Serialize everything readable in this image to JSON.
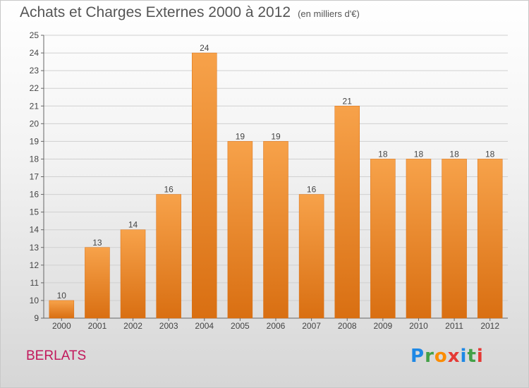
{
  "title": "Achats et Charges Externes 2000 à 2012",
  "title_unit": "(en milliers d'€)",
  "commune": "BERLATS",
  "logo": {
    "letters": [
      "P",
      "r",
      "o",
      "x",
      "i",
      "t",
      "i"
    ],
    "colors": [
      "#1e88e5",
      "#43a047",
      "#fb8c00",
      "#e53935",
      "#1e88e5",
      "#43a047",
      "#e53935"
    ]
  },
  "colors": {
    "bar": "#f08a2c",
    "bar_light": "#f7a24a",
    "bar_dark": "#d96f12",
    "accent_commune": "#c2185b"
  },
  "chart_data": {
    "type": "bar",
    "categories": [
      "2000",
      "2001",
      "2002",
      "2003",
      "2004",
      "2005",
      "2006",
      "2007",
      "2008",
      "2009",
      "2010",
      "2011",
      "2012"
    ],
    "values": [
      10,
      13,
      14,
      16,
      24,
      19,
      19,
      16,
      21,
      18,
      18,
      18,
      18
    ],
    "ylim": [
      9,
      25
    ],
    "yticks": [
      9,
      10,
      11,
      12,
      13,
      14,
      15,
      16,
      17,
      18,
      19,
      20,
      21,
      22,
      23,
      24,
      25
    ],
    "grid": true,
    "data_labels": true
  }
}
